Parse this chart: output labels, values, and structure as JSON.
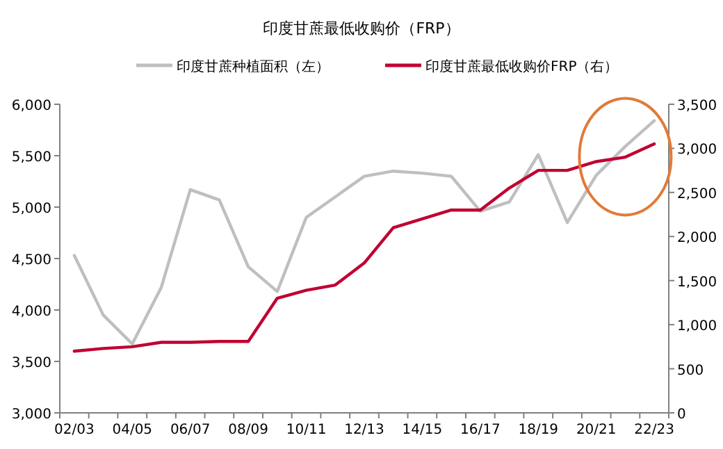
{
  "chart_data": {
    "type": "line",
    "title": "印度甘蔗最低收购价（FRP）",
    "categories": [
      "02/03",
      null,
      "04/05",
      null,
      "06/07",
      null,
      "08/09",
      null,
      "10/11",
      null,
      "12/13",
      null,
      "14/15",
      null,
      "16/17",
      null,
      "18/19",
      null,
      "20/21",
      null,
      "22/23"
    ],
    "series": [
      {
        "name": "印度甘蔗种植面积（左）",
        "color": "#bfbfbf",
        "values": [
          4530,
          3950,
          3670,
          4220,
          5170,
          5070,
          4420,
          4180,
          4900,
          5100,
          5300,
          5350,
          5330,
          5300,
          4960,
          5050,
          5510,
          4850,
          5310,
          5590,
          5840
        ]
      },
      {
        "name": "印度甘蔗最低收购价FRP（右）",
        "color": "#c00032",
        "axis": "y2",
        "values": [
          700,
          730,
          750,
          800,
          800,
          810,
          810,
          1300,
          1390,
          1450,
          1700,
          2100,
          2200,
          2300,
          2300,
          2550,
          2750,
          2750,
          2850,
          2900,
          3050
        ]
      }
    ],
    "ylim": [
      3000,
      6000
    ],
    "yticks": [
      {
        "value": 3000,
        "label": "3,000"
      },
      {
        "value": 3500,
        "label": "3,500"
      },
      {
        "value": 4000,
        "label": "4,000"
      },
      {
        "value": 4500,
        "label": "4,500"
      },
      {
        "value": 5000,
        "label": "5,000"
      },
      {
        "value": 5500,
        "label": "5,500"
      },
      {
        "value": 6000,
        "label": "6,000"
      }
    ],
    "y2lim": [
      0,
      3500
    ],
    "y2ticks": [
      0,
      500,
      {
        "value": 1000,
        "label": "1,000"
      },
      {
        "value": 1500,
        "label": "1,500"
      },
      {
        "value": 2000,
        "label": "2,000"
      },
      {
        "value": 2500,
        "label": "2,500"
      },
      {
        "value": 3000,
        "label": "3,000"
      },
      {
        "value": 3500,
        "label": "3,500"
      }
    ],
    "legend": "top",
    "grid": false,
    "marker": "none",
    "line_style": "solid"
  }
}
